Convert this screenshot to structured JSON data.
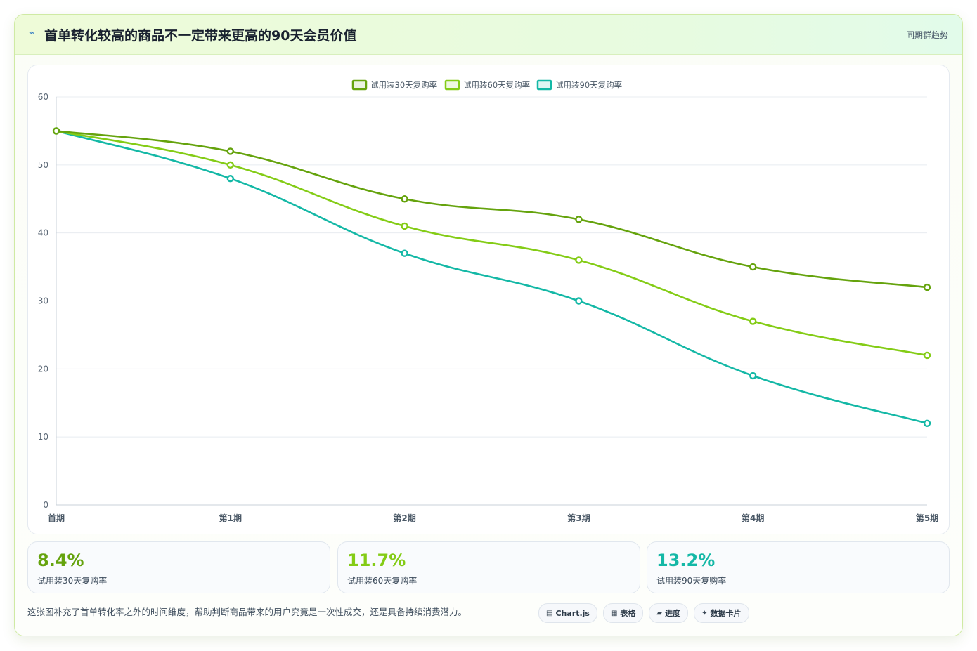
{
  "header": {
    "icon": "lightning-icon",
    "title": "首单转化较高的商品不一定带来更高的90天会员价值",
    "tag": "同期群趋势"
  },
  "chart_data": {
    "type": "line",
    "x": [
      "首期",
      "第1期",
      "第2期",
      "第3期",
      "第4期",
      "第5期"
    ],
    "series": [
      {
        "name": "试用装30天复购率",
        "color": "#65a30d",
        "values": [
          55,
          52,
          45,
          42,
          35,
          32
        ]
      },
      {
        "name": "试用装60天复购率",
        "color": "#84cc16",
        "values": [
          55,
          50,
          41,
          36,
          27,
          22
        ]
      },
      {
        "name": "试用装90天复购率",
        "color": "#14b8a6",
        "values": [
          55,
          48,
          37,
          30,
          19,
          12
        ]
      }
    ],
    "ylim": [
      0,
      60
    ],
    "yticks": [
      0,
      10,
      20,
      30,
      40,
      50,
      60
    ],
    "grid": true,
    "legend": "top-center"
  },
  "stats": [
    {
      "value": "8.4%",
      "label": "试用装30天复购率",
      "color": "#65a30d"
    },
    {
      "value": "11.7%",
      "label": "试用装60天复购率",
      "color": "#84cc16"
    },
    {
      "value": "13.2%",
      "label": "试用装90天复购率",
      "color": "#14b8a6"
    }
  ],
  "footnote": "这张图补充了首单转化率之外的时间维度，帮助判断商品带来的用户究竟是一次性成交，还是具备持续消费潜力。",
  "chips": [
    {
      "label": "Chart.js",
      "icon": "chart-icon"
    },
    {
      "label": "表格",
      "icon": "table-icon"
    },
    {
      "label": "进度",
      "icon": "progress-icon"
    },
    {
      "label": "数据卡片",
      "icon": "sparkle-icon"
    }
  ]
}
